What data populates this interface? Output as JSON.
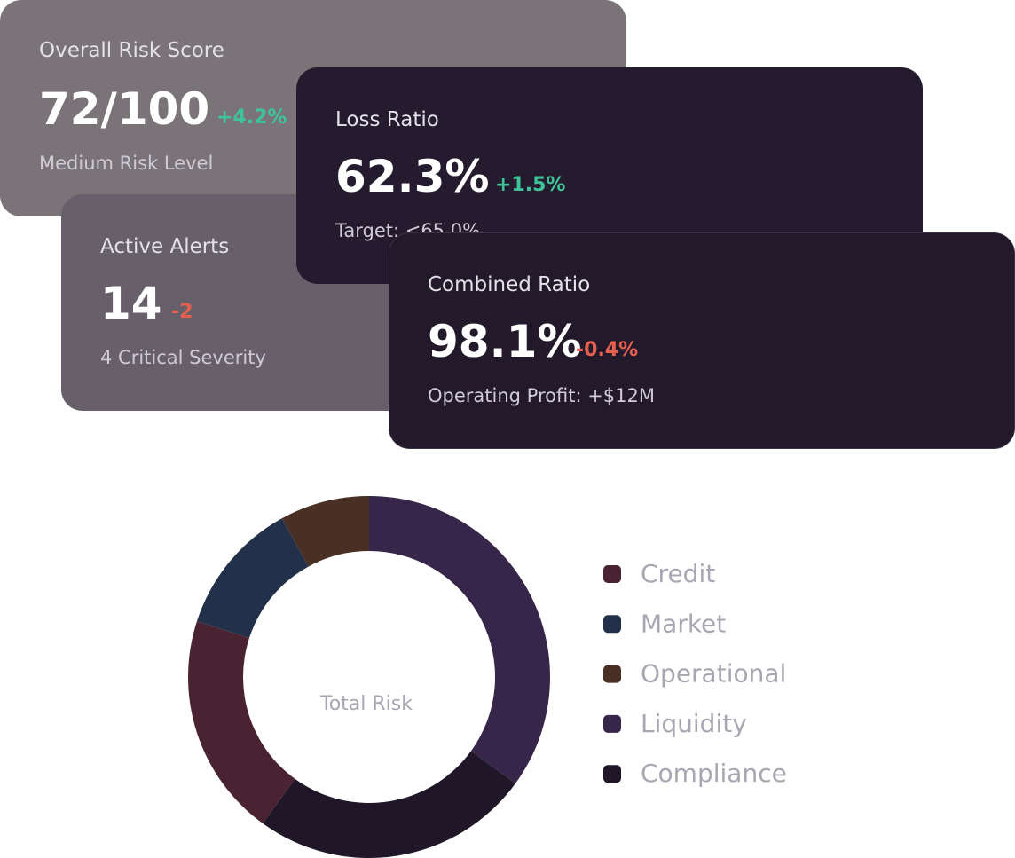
{
  "cards": [
    {
      "title": "Overall Risk Score",
      "value": "72/100",
      "change": "+4.2%",
      "note": "Medium Risk Level"
    },
    {
      "title": "Active Alerts",
      "value": "14",
      "change": "-2",
      "note": "4 Critical Severity"
    },
    {
      "title": "Loss Ratio",
      "value": "62.3%",
      "change": "+1.5%",
      "note": "Target: <65.0%"
    },
    {
      "title": "Combined Ratio",
      "value": "98.1%",
      "change": "-0.4%",
      "note": "Operating Profit: +$12M"
    }
  ],
  "chart_data": {
    "type": "pie",
    "center_label": "Total Risk",
    "categories": [
      "Credit",
      "Market",
      "Operational",
      "Liquidity",
      "Compliance"
    ],
    "values": [
      20,
      12,
      8,
      35,
      25
    ],
    "colors": [
      "#4a2333",
      "#22304a",
      "#4a3024",
      "#37264a",
      "#1f1628"
    ]
  }
}
